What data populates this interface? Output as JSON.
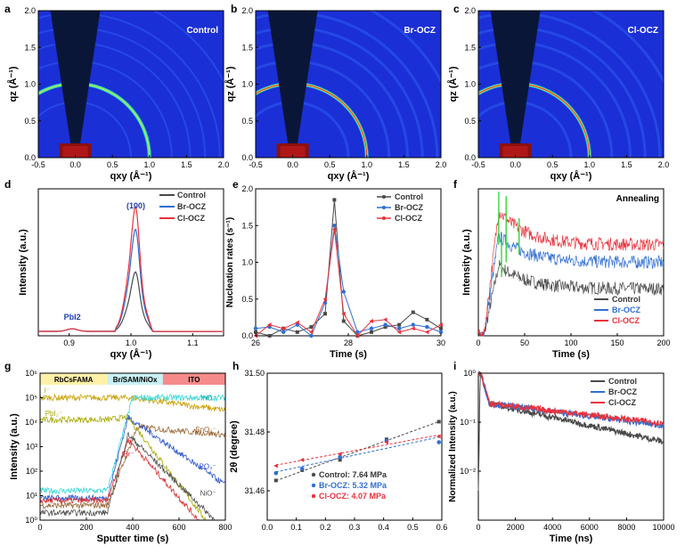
{
  "colors": {
    "control": "#4a4a4a",
    "br": "#2f6fd0",
    "cl": "#e8323c",
    "green": "#3bd43b"
  },
  "chart_data": [
    {
      "panel": "a",
      "type": "heatmap",
      "title": "Control",
      "xlabel": "qxy (Å⁻¹)",
      "ylabel": "qz (Å⁻¹)",
      "xlim": [
        -0.5,
        2.0
      ],
      "ylim": [
        0,
        2.0
      ],
      "xticks": [
        "-0.5",
        "0.0",
        "0.5",
        "1.0",
        "1.5",
        "2.0"
      ],
      "yticks": [
        "0.0",
        "0.5",
        "1.0",
        "1.5",
        "2.0"
      ],
      "ring_q": 1.0
    },
    {
      "panel": "b",
      "type": "heatmap",
      "title": "Br-OCZ",
      "xlabel": "qxy (Å⁻¹)",
      "ylabel": "qz (Å⁻¹)",
      "xlim": [
        -0.5,
        2.0
      ],
      "ylim": [
        0,
        2.0
      ],
      "xticks": [
        "-0.5",
        "0.0",
        "0.5",
        "1.0",
        "1.5",
        "2.0"
      ],
      "yticks": [
        "0.0",
        "0.5",
        "1.0",
        "1.5",
        "2.0"
      ],
      "ring_q": 1.0
    },
    {
      "panel": "c",
      "type": "heatmap",
      "title": "Cl-OCZ",
      "xlabel": "qxy (Å⁻¹)",
      "ylabel": "qz (Å⁻¹)",
      "xlim": [
        -0.5,
        2.0
      ],
      "ylim": [
        0,
        2.0
      ],
      "xticks": [
        "-0.5",
        "0.0",
        "0.5",
        "1.0",
        "1.5",
        "2.0"
      ],
      "yticks": [
        "0.0",
        "0.5",
        "1.0",
        "1.5",
        "2.0"
      ],
      "ring_q": 1.0
    },
    {
      "panel": "d",
      "type": "line",
      "xlabel": "qxy (Å⁻¹)",
      "ylabel": "Intensity (a.u.)",
      "xlim": [
        0.85,
        1.15
      ],
      "xticks": [
        "0.9",
        "1.0",
        "1.1"
      ],
      "annotations": [
        "(100)",
        "PbI2"
      ],
      "series": [
        {
          "name": "Control",
          "peak": 0.42,
          "base": 0.03
        },
        {
          "name": "Br-OCZ",
          "peak": 0.72,
          "base": 0.03
        },
        {
          "name": "Cl-OCZ",
          "peak": 0.88,
          "base": 0.03
        }
      ]
    },
    {
      "panel": "e",
      "type": "line",
      "xlabel": "Time (s)",
      "ylabel": "Nucleation rates (s⁻¹)",
      "xlim": [
        26,
        30
      ],
      "ylim": [
        0,
        2.0
      ],
      "xticks": [
        "26",
        "28",
        "30"
      ],
      "yticks": [
        "0.0",
        "0.5",
        "1.0",
        "1.5",
        "2.0"
      ],
      "series": [
        {
          "name": "Control",
          "x": [
            26.0,
            26.3,
            26.6,
            26.9,
            27.2,
            27.5,
            27.7,
            27.9,
            28.2,
            28.5,
            28.8,
            29.1,
            29.4,
            29.7,
            30.0
          ],
          "y": [
            0.05,
            0.0,
            0.1,
            0.05,
            0.12,
            0.3,
            1.85,
            0.2,
            0.0,
            0.05,
            0.12,
            0.15,
            0.32,
            0.22,
            0.1
          ]
        },
        {
          "name": "Br-OCZ",
          "x": [
            26.0,
            26.3,
            26.6,
            26.9,
            27.2,
            27.5,
            27.7,
            27.9,
            28.2,
            28.5,
            28.8,
            29.1,
            29.4,
            29.7,
            30.0
          ],
          "y": [
            0.1,
            0.12,
            0.05,
            0.15,
            0.0,
            0.45,
            1.5,
            0.6,
            0.05,
            0.1,
            0.15,
            0.1,
            0.15,
            0.12,
            0.05
          ]
        },
        {
          "name": "Cl-OCZ",
          "x": [
            26.0,
            26.3,
            26.6,
            26.9,
            27.2,
            27.5,
            27.7,
            27.9,
            28.2,
            28.5,
            28.8,
            29.1,
            29.4,
            29.7,
            30.0
          ],
          "y": [
            0.0,
            0.15,
            0.1,
            0.18,
            0.05,
            0.5,
            1.45,
            0.3,
            0.0,
            0.2,
            0.22,
            0.05,
            0.1,
            0.05,
            0.15
          ]
        }
      ]
    },
    {
      "panel": "f",
      "type": "line",
      "title": "Annealing",
      "xlabel": "Time (s)",
      "ylabel": "Intensity (a.u.)",
      "xlim": [
        0,
        200
      ],
      "xticks": [
        "0",
        "50",
        "100",
        "150",
        "200"
      ],
      "series": [
        {
          "name": "Control",
          "plateau": 0.32,
          "peak": 0.48
        },
        {
          "name": "Br-OCZ",
          "plateau": 0.5,
          "peak": 0.68
        },
        {
          "name": "Cl-OCZ",
          "plateau": 0.62,
          "peak": 0.85
        }
      ]
    },
    {
      "panel": "g",
      "type": "line",
      "xlabel": "Sputter time (s)",
      "ylabel": "Intensity (a.u.)",
      "xlim": [
        0,
        800
      ],
      "ylim_log": [
        1,
        1000000
      ],
      "xticks": [
        "0",
        "200",
        "400",
        "600",
        "800"
      ],
      "yticks": [
        "10⁰",
        "10¹",
        "10²",
        "10³",
        "10⁴",
        "10⁵",
        "10⁶"
      ],
      "bands": [
        {
          "label": "RbCsFAMA",
          "from": 0,
          "to": 290,
          "color": "#fff1a8"
        },
        {
          "label": "Br/SAM/NiOx",
          "from": 290,
          "to": 530,
          "color": "#c9f0f4"
        },
        {
          "label": "ITO",
          "from": 530,
          "to": 800,
          "color": "#f58b8b"
        }
      ],
      "labels": [
        "I⁻",
        "PbI₂⁻",
        "InO⁻",
        "SnO₂⁻",
        "PO₃⁻",
        "Br⁻",
        "NiO⁻"
      ]
    },
    {
      "panel": "h",
      "type": "scatter",
      "xlabel": "",
      "ylabel": "2θ (degree)",
      "xlim": [
        0,
        0.6
      ],
      "ylim": [
        31.45,
        31.5
      ],
      "xticks": [
        "0.0",
        "0.1",
        "0.2",
        "0.3",
        "0.4",
        "0.5",
        "0.6"
      ],
      "yticks": [
        "31.46",
        "31.48",
        "31.50"
      ],
      "series": [
        {
          "name": "Control: 7.64 MPa",
          "x": [
            0.03,
            0.12,
            0.25,
            0.41,
            0.59
          ],
          "y": [
            31.4635,
            31.467,
            31.4705,
            31.4775,
            31.4835
          ]
        },
        {
          "name": "Br-OCZ: 5.32 MPa",
          "x": [
            0.03,
            0.12,
            0.25,
            0.41,
            0.59
          ],
          "y": [
            31.466,
            31.4675,
            31.4715,
            31.477,
            31.4765
          ]
        },
        {
          "name": "Cl-OCZ: 4.07 MPa",
          "x": [
            0.03,
            0.12,
            0.25,
            0.41,
            0.59
          ],
          "y": [
            31.4685,
            31.4705,
            31.4725,
            31.4765,
            31.4785
          ]
        }
      ]
    },
    {
      "panel": "i",
      "type": "line",
      "xlabel": "Time (ns)",
      "ylabel": "Normalized Intensity (a.u.)",
      "xlim": [
        0,
        10000
      ],
      "ylim_log": [
        0.001,
        1
      ],
      "xticks": [
        "0",
        "2000",
        "4000",
        "6000",
        "8000",
        "10000"
      ],
      "yticks": [
        "10⁻²",
        "10⁻¹",
        "10⁰"
      ],
      "series": [
        {
          "name": "Control",
          "end": 0.04
        },
        {
          "name": "Br-OCZ",
          "end": 0.085
        },
        {
          "name": "Cl-OCZ",
          "end": 0.095
        }
      ]
    }
  ]
}
